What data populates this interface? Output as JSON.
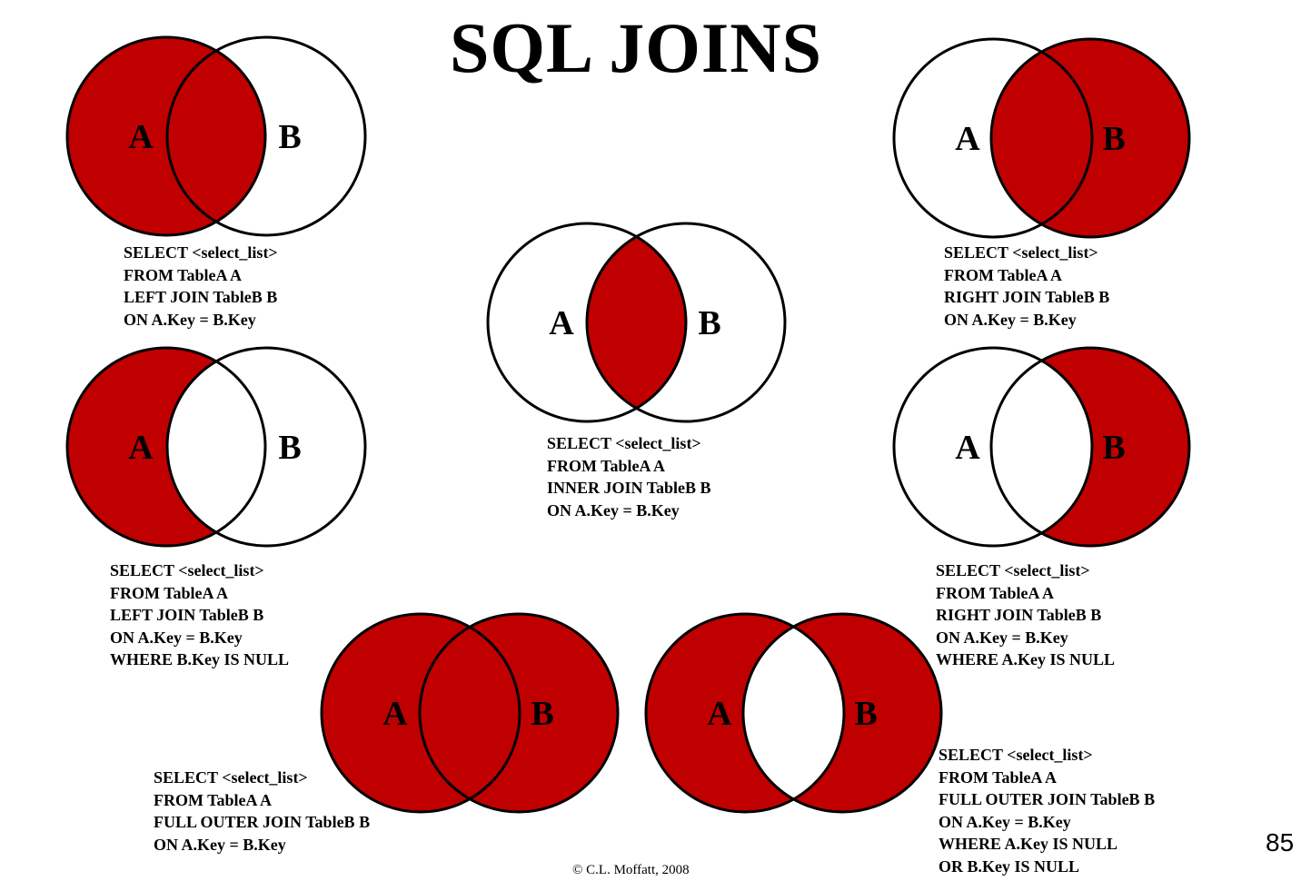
{
  "title": "SQL JOINS",
  "colors": {
    "fill": "#c00000",
    "stroke": "#000000",
    "background": "#ffffff"
  },
  "set_labels": {
    "a": "A",
    "b": "B"
  },
  "diagrams": [
    {
      "id": "left-join",
      "shaded": "all-of-A",
      "query": [
        "SELECT <select_list>",
        "FROM TableA A",
        "LEFT JOIN TableB B",
        "ON A.Key = B.Key"
      ]
    },
    {
      "id": "right-join",
      "shaded": "all-of-B",
      "query": [
        "SELECT <select_list>",
        "FROM TableA A",
        "RIGHT JOIN TableB B",
        "ON A.Key = B.Key"
      ]
    },
    {
      "id": "inner-join",
      "shaded": "A-and-B",
      "query": [
        "SELECT <select_list>",
        "FROM TableA A",
        "INNER JOIN TableB B",
        "ON A.Key = B.Key"
      ]
    },
    {
      "id": "left-join-exclusive",
      "shaded": "A-only",
      "query": [
        "SELECT <select_list>",
        "FROM TableA A",
        "LEFT JOIN TableB B",
        "ON A.Key = B.Key",
        "WHERE B.Key IS NULL"
      ]
    },
    {
      "id": "right-join-exclusive",
      "shaded": "B-only",
      "query": [
        "SELECT <select_list>",
        "FROM TableA A",
        "RIGHT JOIN TableB B",
        "ON A.Key = B.Key",
        "WHERE A.Key IS NULL"
      ]
    },
    {
      "id": "full-outer-join",
      "shaded": "A-or-B",
      "query": [
        "SELECT <select_list>",
        "FROM TableA A",
        "FULL OUTER JOIN TableB B",
        "ON A.Key = B.Key"
      ]
    },
    {
      "id": "full-outer-join-exclusive",
      "shaded": "A-xor-B",
      "query": [
        "SELECT <select_list>",
        "FROM TableA A",
        "FULL OUTER JOIN TableB B",
        "ON A.Key = B.Key",
        "WHERE A.Key IS NULL",
        "OR B.Key IS NULL"
      ]
    }
  ],
  "copyright": "© C.L. Moffatt, 2008",
  "slide_number": "85"
}
